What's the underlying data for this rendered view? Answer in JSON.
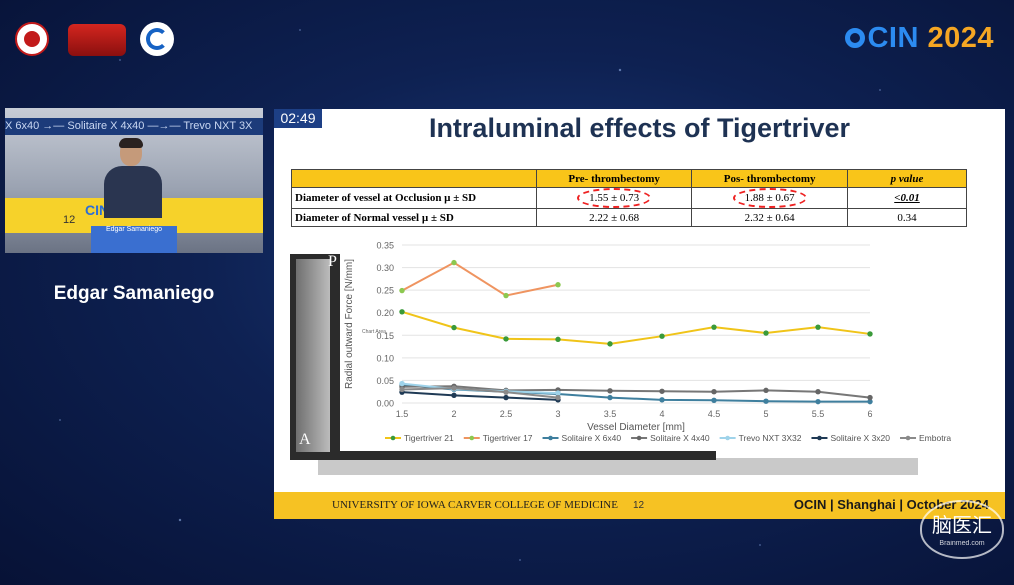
{
  "timer": "02:49",
  "speaker_name": "Edgar Samaniego",
  "brand": {
    "name": "CIN",
    "year": "2024"
  },
  "camera": {
    "ticker": "X 6x40  →— Solitaire X 4x40  —→— Trevo NXT 3X",
    "ocin": "CIN",
    "ocin_year": "2024",
    "slide_num": "12",
    "podium": "Edgar Samaniego"
  },
  "slide": {
    "title": "Intraluminal effects of Tigertriver",
    "table": {
      "headers": [
        "",
        "Pre- thrombectomy",
        "Pos- thrombectomy",
        "p value"
      ],
      "rows": [
        {
          "label": "Diameter of vessel at Occlusion µ ± SD",
          "pre": "1.55 ± 0.73",
          "pos": "1.88 ± 0.67",
          "p": "<0.01"
        },
        {
          "label": "Diameter of Normal vessel µ ± SD",
          "pre": "2.22 ± 0.68",
          "pos": "2.32 ± 0.64",
          "p": "0.34"
        }
      ]
    },
    "image_label_a": "A",
    "image_label_p": "P",
    "footer": {
      "university": "UNIVERSITY OF IOWA CARVER COLLEGE OF MEDICINE",
      "page": "12",
      "right": "OCIN  |  Shanghai  |  October 2024"
    }
  },
  "watermark": {
    "text": "脑医汇",
    "sub": "Brainmed.com"
  },
  "chart_data": {
    "type": "line",
    "xlabel": "Vessel Diameter [mm]",
    "ylabel": "Radial outward Force [N/mm]",
    "xlim": [
      1.5,
      6
    ],
    "ylim": [
      0,
      0.35
    ],
    "yticks": [
      "0.00",
      "0.05",
      "0.10",
      "0.15",
      "0.20",
      "0.25",
      "0.30",
      "0.35"
    ],
    "xticks": [
      "1.5",
      "2",
      "2.5",
      "3",
      "3.5",
      "4",
      "4.5",
      "5",
      "5.5",
      "6"
    ],
    "chart_area_label": "Chart Area",
    "grid": true,
    "legend": "bottom",
    "series": [
      {
        "name": "Tigertriver 21",
        "color": "#f0c419",
        "marker": "#3a9a3a",
        "x": [
          1.5,
          2,
          2.5,
          3,
          3.5,
          4,
          4.5,
          5,
          5.5,
          6
        ],
        "y": [
          0.202,
          0.167,
          0.142,
          0.141,
          0.131,
          0.148,
          0.168,
          0.155,
          0.168,
          0.153
        ]
      },
      {
        "name": "Tigertriver 17",
        "color": "#ef9460",
        "marker": "#8cc850",
        "x": [
          1.5,
          2,
          2.5,
          3
        ],
        "y": [
          0.249,
          0.311,
          0.238,
          0.262
        ]
      },
      {
        "name": "Solitaire X 6x40",
        "color": "#3f7f9e",
        "marker": "#3f7f9e",
        "x": [
          1.5,
          2,
          2.5,
          3,
          3.5,
          4,
          4.5,
          5,
          5.5,
          6
        ],
        "y": [
          0.04,
          0.03,
          0.025,
          0.02,
          0.012,
          0.007,
          0.006,
          0.004,
          0.003,
          0.003
        ]
      },
      {
        "name": "Solitaire X 4x40",
        "color": "#777777",
        "marker": "#666666",
        "x": [
          1.5,
          2,
          2.5,
          3,
          3.5,
          4,
          4.5,
          5,
          5.5,
          6
        ],
        "y": [
          0.036,
          0.037,
          0.028,
          0.029,
          0.027,
          0.026,
          0.025,
          0.028,
          0.025,
          0.012
        ]
      },
      {
        "name": "Trevo NXT 3X32",
        "color": "#9fd3ea",
        "marker": "#9fd3ea",
        "x": [
          1.5,
          2,
          2.5,
          3
        ],
        "y": [
          0.043,
          0.031,
          0.026,
          0.022
        ]
      },
      {
        "name": "Solitaire X 3x20",
        "color": "#1f3a55",
        "marker": "#1f3a55",
        "x": [
          1.5,
          2,
          2.5,
          3
        ],
        "y": [
          0.024,
          0.017,
          0.012,
          0.007
        ]
      },
      {
        "name": "Embotrap III",
        "color": "#8a8a8a",
        "marker": "#8a8a8a",
        "x": [
          1.5,
          2,
          2.5,
          3
        ],
        "y": [
          0.03,
          0.033,
          0.024,
          0.012
        ]
      }
    ]
  }
}
